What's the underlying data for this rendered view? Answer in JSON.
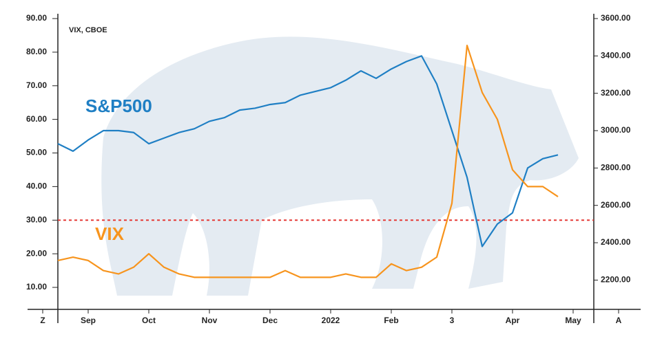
{
  "chart_data": {
    "type": "line",
    "annotations": {
      "source": "VIX, CBOE",
      "threshold": 30,
      "threshold_color": "#e53935"
    },
    "categories": [
      "Z",
      null,
      null,
      "Sep",
      null,
      null,
      null,
      "Oct",
      null,
      null,
      null,
      "Nov",
      null,
      null,
      null,
      "Dec",
      null,
      null,
      null,
      "2022",
      null,
      null,
      null,
      "Feb",
      null,
      null,
      null,
      "3",
      null,
      null,
      null,
      "Apr",
      null,
      null,
      null,
      "May",
      null,
      null,
      "A"
    ],
    "series": [
      {
        "name": "S&P500",
        "color": "#1f7fc4",
        "axis": "y2",
        "values": [
          null,
          2930,
          2890,
          2950,
          3000,
          3000,
          2990,
          2930,
          2960,
          2990,
          3010,
          3050,
          3070,
          3110,
          3120,
          3140,
          3150,
          3190,
          3210,
          3230,
          3270,
          3320,
          3280,
          3330,
          3370,
          3400,
          3250,
          3000,
          2750,
          2380,
          2500,
          2560,
          2800,
          2850,
          2870,
          null,
          null,
          null,
          null
        ]
      },
      {
        "name": "VIX",
        "color": "#f7941d",
        "values": [
          null,
          18,
          19,
          18,
          15,
          14,
          16,
          20,
          16,
          14,
          13,
          13,
          13,
          13,
          13,
          13,
          15,
          13,
          13,
          13,
          14,
          13,
          13,
          17,
          15,
          16,
          19,
          35,
          82,
          68,
          60,
          45,
          40,
          40,
          37,
          null,
          null,
          null,
          null
        ]
      }
    ],
    "ylim": [
      5.5,
      90
    ],
    "yticks": [
      {
        "value": 10,
        "label": "10.00"
      },
      {
        "value": 20,
        "label": "20.00"
      },
      {
        "value": 30,
        "label": "30.00"
      },
      {
        "value": 40,
        "label": "40.00"
      },
      {
        "value": 50,
        "label": "50.00"
      },
      {
        "value": 60,
        "label": "60.00"
      },
      {
        "value": 70,
        "label": "70.00"
      },
      {
        "value": 80,
        "label": "80.00"
      },
      {
        "value": 90,
        "label": "90.00"
      }
    ],
    "y2lim": [
      2080,
      3600
    ],
    "y2ticks": [
      {
        "value": 2200,
        "label": "2200.00"
      },
      {
        "value": 2400,
        "label": "2400.00"
      },
      {
        "value": 2600,
        "label": "2600.00"
      },
      {
        "value": 2800,
        "label": "2800.00"
      },
      {
        "value": 3000,
        "label": "3000.00"
      },
      {
        "value": 3200,
        "label": "3200.00"
      },
      {
        "value": 3400,
        "label": "3400.00"
      },
      {
        "value": 3600,
        "label": "3600.00"
      }
    ]
  }
}
